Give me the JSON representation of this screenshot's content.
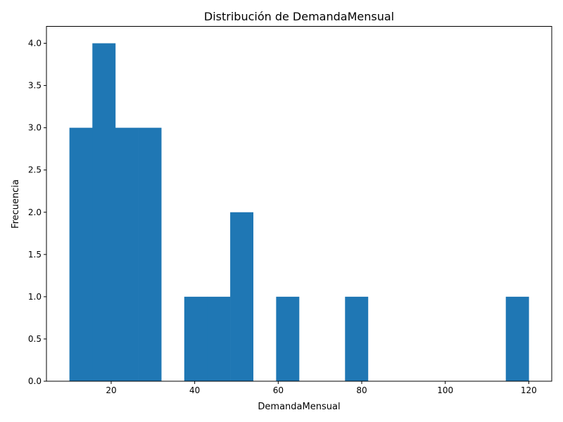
{
  "chart_data": {
    "type": "bar",
    "subtype": "histogram",
    "title": "Distribución de DemandaMensual",
    "xlabel": "DemandaMensual",
    "ylabel": "Frecuencia",
    "xlim": [
      4.5,
      125.5
    ],
    "ylim": [
      0,
      4.2
    ],
    "grid": false,
    "bar_color": "#1f77b4",
    "bin_width": 5.5,
    "bin_edges": [
      10,
      15.5,
      21,
      26.5,
      32,
      37.5,
      43,
      48.5,
      54,
      59.5,
      65,
      70.5,
      76,
      81.5,
      87,
      92.5,
      98,
      103.5,
      109,
      114.5,
      120
    ],
    "values": [
      3,
      4,
      3,
      3,
      0,
      1,
      1,
      2,
      0,
      1,
      0,
      0,
      1,
      0,
      0,
      0,
      0,
      0,
      0,
      1
    ],
    "x_ticks": [
      20,
      40,
      60,
      80,
      100,
      120
    ],
    "x_tick_labels": [
      "20",
      "40",
      "60",
      "80",
      "100",
      "120"
    ],
    "y_ticks": [
      0,
      0.5,
      1,
      1.5,
      2,
      2.5,
      3,
      3.5,
      4
    ],
    "y_tick_labels": [
      "0.0",
      "0.5",
      "1.0",
      "1.5",
      "2.0",
      "2.5",
      "3.0",
      "3.5",
      "4.0"
    ]
  }
}
